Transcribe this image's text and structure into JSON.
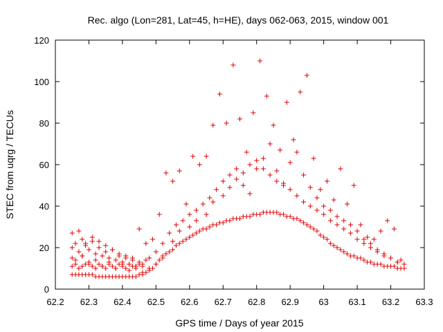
{
  "chart_data": {
    "type": "scatter",
    "title": "Rec. algo (Lon=281, Lat=45, h=HE), days 062-063, 2015, window 001",
    "xlabel": "GPS time / Days of year 2015",
    "ylabel": "STEC from uqrg / TECUs",
    "xlim": [
      62.2,
      63.3
    ],
    "ylim": [
      0,
      120
    ],
    "xticks": [
      "62.2",
      "62.3",
      "62.4",
      "62.5",
      "62.6",
      "62.7",
      "62.8",
      "62.9",
      "63",
      "63.1",
      "63.2",
      "63.3"
    ],
    "yticks": [
      "0",
      "20",
      "40",
      "60",
      "80",
      "100",
      "120"
    ],
    "grid": false,
    "marker": "+",
    "marker_color": "#dd0000",
    "series": [
      {
        "x": [
          62.25,
          62.25,
          62.25,
          62.26,
          62.26,
          62.27,
          62.27,
          62.28,
          62.28,
          62.28,
          62.29,
          62.29,
          62.3,
          62.3,
          62.31,
          62.31,
          62.32,
          62.32,
          62.33,
          62.33,
          62.34,
          62.34,
          62.35,
          62.35,
          62.36,
          62.36,
          62.37,
          62.37,
          62.38,
          62.38,
          62.39,
          62.39,
          62.4,
          62.4,
          62.41,
          62.41,
          62.42,
          62.42,
          62.43,
          62.43,
          62.44,
          62.44,
          62.45,
          62.45,
          62.46,
          62.46,
          62.47,
          62.48,
          62.49,
          62.5,
          62.51,
          62.52,
          62.53,
          62.54,
          62.55,
          62.56,
          62.57,
          62.58,
          62.59,
          62.6,
          62.61,
          62.62,
          62.63,
          62.64,
          62.65,
          62.66,
          62.67,
          62.68,
          62.69,
          62.7,
          62.71,
          62.72,
          62.73,
          62.74,
          62.75,
          62.76,
          62.77,
          62.78,
          62.79,
          62.8,
          62.81,
          62.82,
          62.83,
          62.84,
          62.85,
          62.86,
          62.87,
          62.88,
          62.89,
          62.9,
          62.91,
          62.92,
          62.93,
          62.94,
          62.95,
          62.96,
          62.97,
          62.98,
          62.99,
          63.0,
          63.01,
          63.02,
          63.03,
          63.04,
          63.05,
          63.06,
          63.07,
          63.08,
          63.09,
          63.1,
          63.11,
          63.12,
          63.13,
          63.14,
          63.15,
          63.16,
          63.17,
          63.18,
          63.19,
          63.2,
          63.21,
          63.22,
          63.23,
          63.24
        ],
        "y": [
          7,
          11,
          15,
          7,
          12,
          7,
          10,
          7,
          11,
          16,
          7,
          12,
          7,
          13,
          7,
          11,
          6,
          10,
          6,
          12,
          6,
          11,
          6,
          10,
          6,
          12,
          6,
          11,
          6,
          10,
          6,
          12,
          6,
          11,
          6,
          10,
          6,
          12,
          6,
          11,
          6,
          10,
          7,
          12,
          7,
          11,
          8,
          9,
          10,
          12,
          14,
          15,
          17,
          18,
          19,
          21,
          22,
          23,
          24,
          25,
          26,
          27,
          28,
          29,
          29,
          30,
          31,
          31,
          32,
          32,
          33,
          33,
          34,
          34,
          34,
          35,
          35,
          35,
          36,
          36,
          36,
          37,
          37,
          37,
          37,
          37,
          36,
          36,
          35,
          35,
          34,
          34,
          33,
          32,
          31,
          30,
          29,
          28,
          26,
          25,
          24,
          22,
          21,
          20,
          19,
          18,
          17,
          16,
          16,
          15,
          15,
          14,
          13,
          13,
          12,
          12,
          12,
          11,
          11,
          11,
          11,
          10,
          10,
          10
        ]
      },
      {
        "x": [
          62.25,
          62.26,
          62.27,
          62.28,
          62.29,
          62.3,
          62.31,
          62.32,
          62.33,
          62.34,
          62.35,
          62.36,
          62.37,
          62.38,
          62.39,
          62.4,
          62.41,
          62.42,
          62.43,
          62.44,
          62.45,
          62.46,
          62.47,
          62.48,
          62.5,
          62.52,
          62.54,
          62.56,
          62.58,
          62.6,
          62.62,
          62.64,
          62.66,
          62.68,
          62.7,
          62.72,
          62.74,
          62.76,
          62.78,
          62.8,
          62.82,
          62.84,
          62.86,
          62.88,
          62.9,
          62.92,
          62.94,
          62.96,
          62.98,
          63.0,
          63.02,
          63.04,
          63.06,
          63.08,
          63.1,
          63.12,
          63.14,
          63.16,
          63.18,
          63.2,
          63.22,
          63.24
        ],
        "y": [
          20,
          22,
          18,
          24,
          21,
          19,
          23,
          17,
          20,
          16,
          18,
          15,
          19,
          14,
          16,
          13,
          15,
          12,
          14,
          11,
          13,
          12,
          14,
          15,
          18,
          22,
          27,
          31,
          33,
          36,
          38,
          41,
          44,
          48,
          52,
          55,
          58,
          56,
          60,
          62,
          58,
          55,
          52,
          50,
          48,
          45,
          42,
          40,
          38,
          36,
          33,
          31,
          29,
          27,
          24,
          22,
          20,
          18,
          16,
          15,
          13,
          12
        ]
      },
      {
        "x": [
          62.25,
          62.27,
          62.29,
          62.31,
          62.33,
          62.35,
          62.37,
          62.39,
          62.41,
          62.43,
          62.45,
          62.47,
          62.49,
          62.51,
          62.53,
          62.55,
          62.57,
          62.59,
          62.61,
          62.63,
          62.65,
          62.67,
          62.69,
          62.71,
          62.73,
          62.75,
          62.77,
          62.79,
          62.81,
          62.83,
          62.85,
          62.87,
          62.89,
          62.91,
          62.93,
          62.95,
          62.97,
          62.99,
          63.01,
          63.03,
          63.05,
          63.07,
          63.09,
          63.11,
          63.13,
          63.15,
          63.17,
          63.19,
          63.21,
          63.23
        ],
        "y": [
          27,
          28,
          22,
          25,
          23,
          21,
          19,
          17,
          16,
          15,
          29,
          22,
          24,
          36,
          56,
          52,
          57,
          41,
          64,
          60,
          64,
          79,
          94,
          80,
          108,
          82,
          66,
          85,
          110,
          93,
          79,
          67,
          90,
          72,
          95,
          103,
          63,
          48,
          52,
          43,
          58,
          41,
          50,
          31,
          25,
          24,
          28,
          33,
          29,
          14
        ]
      },
      {
        "x": [
          62.26,
          62.28,
          62.3,
          62.32,
          62.34,
          62.36,
          62.38,
          62.4,
          62.42,
          62.44,
          62.46,
          62.48,
          62.5,
          62.52,
          62.55,
          62.57,
          62.6,
          62.62,
          62.65,
          62.67,
          62.7,
          62.72,
          62.74,
          62.76,
          62.78,
          62.8,
          62.82,
          62.84,
          62.86,
          62.88,
          62.9,
          62.92,
          62.94,
          62.96,
          62.98,
          63.0,
          63.02,
          63.04,
          63.06,
          63.08,
          63.1,
          63.12,
          63.14,
          63.16,
          63.18,
          63.2,
          63.22
        ],
        "y": [
          14,
          16,
          12,
          14,
          11,
          13,
          10,
          12,
          9,
          11,
          8,
          10,
          12,
          16,
          23,
          28,
          30,
          33,
          36,
          42,
          45,
          49,
          53,
          50,
          46,
          58,
          63,
          70,
          57,
          51,
          61,
          66,
          55,
          49,
          44,
          40,
          38,
          35,
          33,
          31,
          28,
          24,
          22,
          19,
          17,
          15,
          13
        ]
      }
    ]
  }
}
